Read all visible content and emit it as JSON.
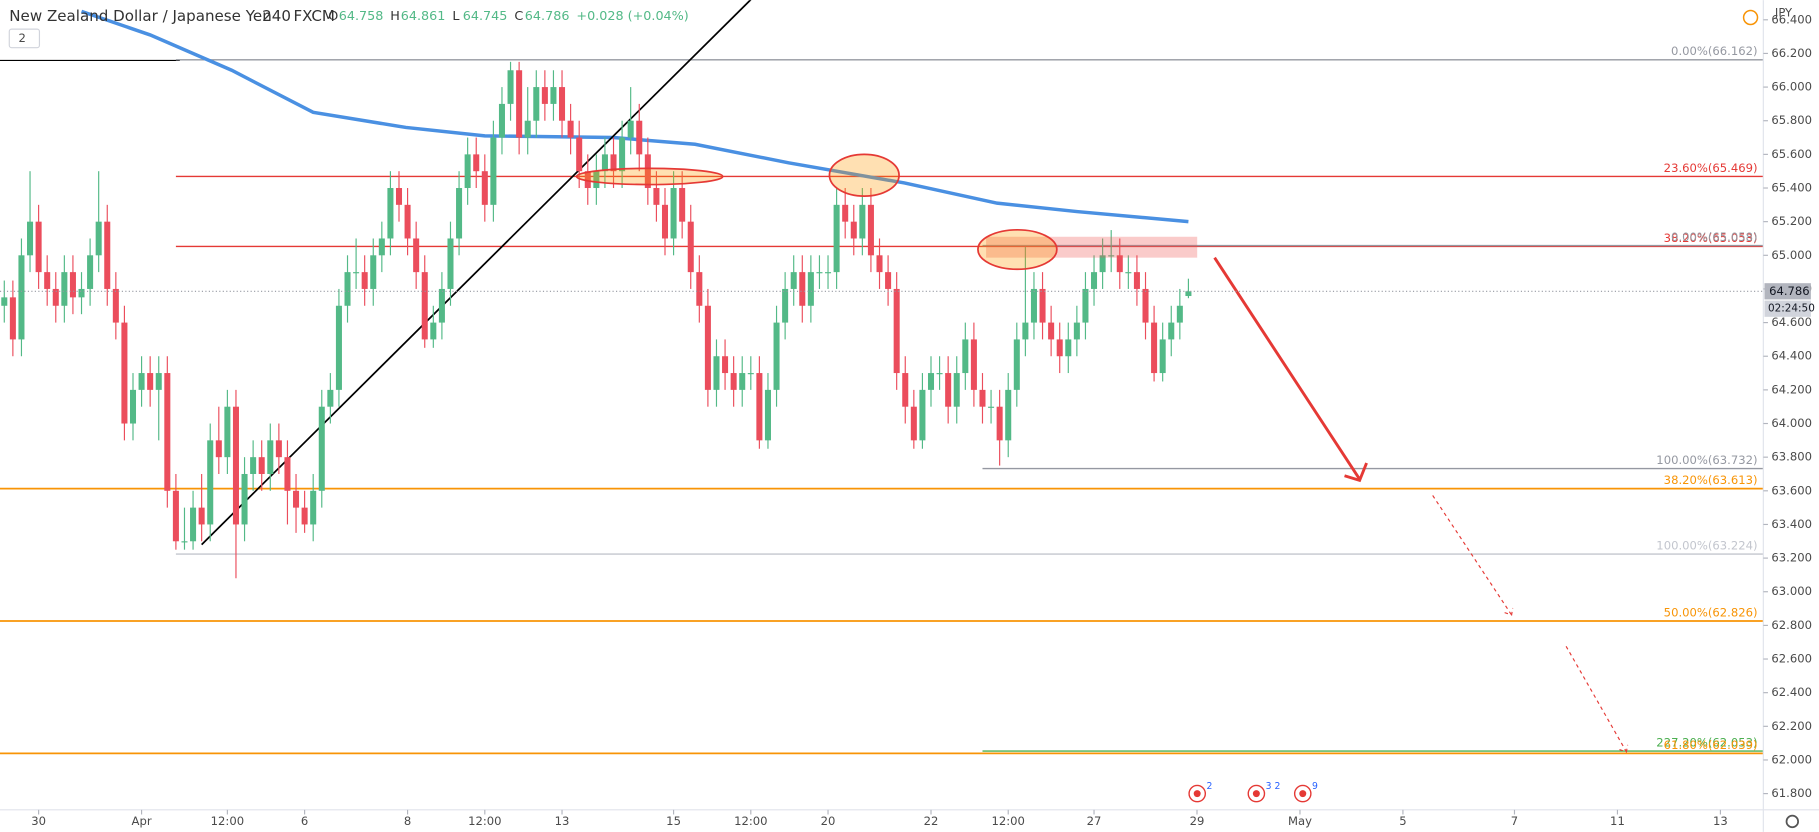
{
  "chart_data": {
    "type": "candlestick",
    "symbol": "New Zealand Dollar / Japanese Yen",
    "interval": "240",
    "source": "FXCM",
    "ohlc_labels": [
      "O",
      "H",
      "L",
      "C"
    ],
    "change": "+0.028 (+0.04%)",
    "indicator_count": "2",
    "currency": "JPY",
    "countdown": "02:24:50",
    "event_badges": [
      "2",
      "3 2",
      "9"
    ],
    "up_color": "#53b987",
    "down_color": "#eb4d5c",
    "xlim": [
      -0.5,
      205
    ],
    "ylim": [
      61.7,
      66.517
    ],
    "xticks": [
      {
        "value": 4,
        "label": "30"
      },
      {
        "value": 16,
        "label": "Apr"
      },
      {
        "value": 26,
        "label": "12:00"
      },
      {
        "value": 35,
        "label": "6"
      },
      {
        "value": 47,
        "label": "8"
      },
      {
        "value": 56,
        "label": "12:00"
      },
      {
        "value": 65,
        "label": "13"
      },
      {
        "value": 78,
        "label": "15"
      },
      {
        "value": 87,
        "label": "12:00"
      },
      {
        "value": 96,
        "label": "20"
      },
      {
        "value": 108,
        "label": "22"
      },
      {
        "value": 117,
        "label": "12:00"
      },
      {
        "value": 127,
        "label": "27"
      },
      {
        "value": 139,
        "label": "29"
      },
      {
        "value": 151,
        "label": "May"
      },
      {
        "value": 163,
        "label": "5"
      },
      {
        "value": 176,
        "label": "7"
      },
      {
        "value": 188,
        "label": "11"
      },
      {
        "value": 200,
        "label": "13"
      }
    ],
    "yticks": [
      {
        "value": 61.8,
        "label": "61.800"
      },
      {
        "value": 62.0,
        "label": "62.000"
      },
      {
        "value": 62.2,
        "label": "62.200"
      },
      {
        "value": 62.4,
        "label": "62.400"
      },
      {
        "value": 62.6,
        "label": "62.600"
      },
      {
        "value": 62.8,
        "label": "62.800"
      },
      {
        "value": 63.0,
        "label": "63.000"
      },
      {
        "value": 63.2,
        "label": "63.200"
      },
      {
        "value": 63.4,
        "label": "63.400"
      },
      {
        "value": 63.6,
        "label": "63.600"
      },
      {
        "value": 63.8,
        "label": "63.800"
      },
      {
        "value": 64.0,
        "label": "64.000"
      },
      {
        "value": 64.2,
        "label": "64.200"
      },
      {
        "value": 64.4,
        "label": "64.400"
      },
      {
        "value": 64.6,
        "label": "64.600"
      },
      {
        "value": 64.8,
        "label": "64.800"
      },
      {
        "value": 65.0,
        "label": "65.000"
      },
      {
        "value": 65.2,
        "label": "65.200"
      },
      {
        "value": 65.4,
        "label": "65.400"
      },
      {
        "value": 65.6,
        "label": "65.600"
      },
      {
        "value": 65.8,
        "label": "65.800"
      },
      {
        "value": 66.0,
        "label": "66.000"
      },
      {
        "value": 66.2,
        "label": "66.200"
      },
      {
        "value": 66.4,
        "label": "66.400"
      }
    ],
    "moving_average": {
      "color": "#4a90e2",
      "x": [
        9,
        17,
        26.5,
        36,
        46.8,
        56,
        71,
        80.5,
        91.4,
        104.9,
        115.7,
        125,
        138
      ],
      "values": [
        66.45,
        66.31,
        66.1,
        65.85,
        65.76,
        65.71,
        65.7,
        65.66,
        65.55,
        65.43,
        65.31,
        65.26,
        65.2
      ]
    },
    "trendline": {
      "color": "#000000",
      "x": [
        23,
        87
      ],
      "values": [
        63.28,
        66.52
      ]
    },
    "levels": [
      {
        "label": "0.00%(66.162)",
        "value": 66.162,
        "color": "#9598a1",
        "from": 20
      },
      {
        "label": "23.60%(65.469)",
        "value": 65.469,
        "color": "#e53935",
        "from": 20
      },
      {
        "label": "38.20%(65.053)",
        "value": 65.053,
        "color": "#e53935",
        "from": 20
      },
      {
        "label": "0.00%(65.058)",
        "value": 65.058,
        "color": "#9598a1",
        "from": 114
      },
      {
        "label": "100.00%(63.732)",
        "value": 63.732,
        "color": "#9598a1",
        "from": 114
      },
      {
        "label": "38.20%(63.613)",
        "value": 63.613,
        "color": "#f89406",
        "from": -0.5
      },
      {
        "label": "100.00%(63.224)",
        "value": 63.224,
        "color": "#c3c6ce",
        "from": 20
      },
      {
        "label": "50.00%(62.826)",
        "value": 62.826,
        "color": "#f89406",
        "from": -0.5
      },
      {
        "label": "227.20%(62.053)",
        "value": 62.053,
        "color": "#4caf50",
        "from": 114
      },
      {
        "label": "61.80%(62.039)",
        "value": 62.039,
        "color": "#f89406",
        "from": -0.5
      }
    ],
    "candles": [
      [
        64.7,
        64.85,
        64.6,
        64.75
      ],
      [
        64.75,
        64.85,
        64.4,
        64.5
      ],
      [
        64.5,
        65.1,
        64.4,
        65.0
      ],
      [
        65.0,
        65.5,
        64.9,
        65.2
      ],
      [
        65.2,
        65.3,
        64.8,
        64.9
      ],
      [
        64.9,
        65.0,
        64.7,
        64.8
      ],
      [
        64.8,
        64.9,
        64.6,
        64.7
      ],
      [
        64.7,
        65.0,
        64.6,
        64.9
      ],
      [
        64.9,
        65.0,
        64.65,
        64.75
      ],
      [
        64.75,
        64.9,
        64.65,
        64.8
      ],
      [
        64.8,
        65.1,
        64.7,
        65.0
      ],
      [
        65.0,
        65.5,
        64.9,
        65.2
      ],
      [
        65.2,
        65.3,
        64.7,
        64.8
      ],
      [
        64.8,
        64.9,
        64.5,
        64.6
      ],
      [
        64.6,
        64.7,
        63.9,
        64.0
      ],
      [
        64.0,
        64.3,
        63.9,
        64.2
      ],
      [
        64.2,
        64.4,
        64.1,
        64.3
      ],
      [
        64.3,
        64.4,
        64.1,
        64.2
      ],
      [
        64.2,
        64.4,
        63.9,
        64.3
      ],
      [
        64.3,
        64.4,
        63.5,
        63.6
      ],
      [
        63.6,
        63.7,
        63.25,
        63.3
      ],
      [
        63.3,
        63.5,
        63.25,
        63.3
      ],
      [
        63.3,
        63.6,
        63.25,
        63.5
      ],
      [
        63.5,
        63.7,
        63.3,
        63.4
      ],
      [
        63.4,
        64.0,
        63.3,
        63.9
      ],
      [
        63.9,
        64.1,
        63.7,
        63.8
      ],
      [
        63.8,
        64.2,
        63.7,
        64.1
      ],
      [
        64.1,
        64.2,
        63.08,
        63.4
      ],
      [
        63.4,
        63.8,
        63.3,
        63.7
      ],
      [
        63.7,
        63.9,
        63.6,
        63.8
      ],
      [
        63.8,
        63.9,
        63.6,
        63.7
      ],
      [
        63.7,
        64.0,
        63.6,
        63.9
      ],
      [
        63.9,
        64.0,
        63.7,
        63.8
      ],
      [
        63.8,
        63.9,
        63.4,
        63.6
      ],
      [
        63.6,
        63.7,
        63.35,
        63.5
      ],
      [
        63.5,
        63.6,
        63.35,
        63.4
      ],
      [
        63.4,
        63.7,
        63.3,
        63.6
      ],
      [
        63.6,
        64.2,
        63.5,
        64.1
      ],
      [
        64.1,
        64.3,
        64.0,
        64.2
      ],
      [
        64.2,
        64.8,
        64.1,
        64.7
      ],
      [
        64.7,
        65.0,
        64.6,
        64.9
      ],
      [
        64.9,
        65.1,
        64.8,
        64.9
      ],
      [
        64.9,
        65.0,
        64.7,
        64.8
      ],
      [
        64.8,
        65.1,
        64.7,
        65.0
      ],
      [
        65.0,
        65.2,
        64.9,
        65.1
      ],
      [
        65.1,
        65.5,
        65.0,
        65.4
      ],
      [
        65.4,
        65.5,
        65.2,
        65.3
      ],
      [
        65.3,
        65.4,
        65.0,
        65.1
      ],
      [
        65.1,
        65.2,
        64.8,
        64.9
      ],
      [
        64.9,
        65.0,
        64.45,
        64.5
      ],
      [
        64.5,
        64.7,
        64.45,
        64.6
      ],
      [
        64.6,
        64.9,
        64.5,
        64.8
      ],
      [
        64.8,
        65.2,
        64.7,
        65.1
      ],
      [
        65.1,
        65.5,
        65.0,
        65.4
      ],
      [
        65.4,
        65.7,
        65.3,
        65.6
      ],
      [
        65.6,
        65.7,
        65.4,
        65.5
      ],
      [
        65.5,
        65.6,
        65.2,
        65.3
      ],
      [
        65.3,
        65.8,
        65.2,
        65.7
      ],
      [
        65.7,
        66.0,
        65.6,
        65.9
      ],
      [
        65.9,
        66.15,
        65.8,
        66.1
      ],
      [
        66.1,
        66.15,
        65.6,
        65.7
      ],
      [
        65.7,
        66.0,
        65.6,
        65.8
      ],
      [
        65.8,
        66.1,
        65.7,
        66.0
      ],
      [
        66.0,
        66.1,
        65.8,
        65.9
      ],
      [
        65.9,
        66.1,
        65.8,
        66.0
      ],
      [
        66.0,
        66.1,
        65.7,
        65.8
      ],
      [
        65.8,
        65.9,
        65.6,
        65.7
      ],
      [
        65.7,
        65.8,
        65.4,
        65.5
      ],
      [
        65.5,
        65.6,
        65.3,
        65.4
      ],
      [
        65.4,
        65.6,
        65.3,
        65.5
      ],
      [
        65.5,
        65.7,
        65.4,
        65.6
      ],
      [
        65.6,
        65.7,
        65.4,
        65.5
      ],
      [
        65.5,
        65.8,
        65.4,
        65.7
      ],
      [
        65.7,
        66.0,
        65.6,
        65.8
      ],
      [
        65.8,
        65.9,
        65.5,
        65.6
      ],
      [
        65.6,
        65.7,
        65.3,
        65.4
      ],
      [
        65.4,
        65.5,
        65.2,
        65.3
      ],
      [
        65.3,
        65.4,
        65.0,
        65.1
      ],
      [
        65.1,
        65.5,
        65.0,
        65.4
      ],
      [
        65.4,
        65.5,
        65.1,
        65.2
      ],
      [
        65.2,
        65.3,
        64.8,
        64.9
      ],
      [
        64.9,
        65.0,
        64.6,
        64.7
      ],
      [
        64.7,
        64.8,
        64.1,
        64.2
      ],
      [
        64.2,
        64.5,
        64.1,
        64.4
      ],
      [
        64.4,
        64.5,
        64.2,
        64.3
      ],
      [
        64.3,
        64.4,
        64.1,
        64.2
      ],
      [
        64.2,
        64.4,
        64.1,
        64.3
      ],
      [
        64.3,
        64.4,
        64.2,
        64.3
      ],
      [
        64.3,
        64.4,
        63.85,
        63.9
      ],
      [
        63.9,
        64.3,
        63.85,
        64.2
      ],
      [
        64.2,
        64.7,
        64.1,
        64.6
      ],
      [
        64.6,
        64.9,
        64.5,
        64.8
      ],
      [
        64.8,
        65.0,
        64.7,
        64.9
      ],
      [
        64.9,
        65.0,
        64.6,
        64.7
      ],
      [
        64.7,
        65.0,
        64.6,
        64.9
      ],
      [
        64.9,
        65.0,
        64.8,
        64.9
      ],
      [
        64.9,
        65.0,
        64.8,
        64.9
      ],
      [
        64.9,
        65.4,
        64.8,
        65.3
      ],
      [
        65.3,
        65.4,
        65.1,
        65.2
      ],
      [
        65.2,
        65.3,
        65.0,
        65.1
      ],
      [
        65.1,
        65.4,
        65.0,
        65.3
      ],
      [
        65.3,
        65.4,
        64.9,
        65.0
      ],
      [
        65.0,
        65.1,
        64.8,
        64.9
      ],
      [
        64.9,
        65.0,
        64.7,
        64.8
      ],
      [
        64.8,
        64.9,
        64.2,
        64.3
      ],
      [
        64.3,
        64.4,
        64.0,
        64.1
      ],
      [
        64.1,
        64.2,
        63.85,
        63.9
      ],
      [
        63.9,
        64.3,
        63.85,
        64.2
      ],
      [
        64.2,
        64.4,
        64.1,
        64.3
      ],
      [
        64.3,
        64.4,
        64.2,
        64.3
      ],
      [
        64.3,
        64.4,
        64.0,
        64.1
      ],
      [
        64.1,
        64.4,
        64.0,
        64.3
      ],
      [
        64.3,
        64.6,
        64.2,
        64.5
      ],
      [
        64.5,
        64.6,
        64.1,
        64.2
      ],
      [
        64.2,
        64.3,
        64.0,
        64.1
      ],
      [
        64.1,
        64.2,
        64.0,
        64.1
      ],
      [
        64.1,
        64.2,
        63.75,
        63.9
      ],
      [
        63.9,
        64.3,
        63.8,
        64.2
      ],
      [
        64.2,
        64.6,
        64.1,
        64.5
      ],
      [
        64.5,
        65.05,
        64.4,
        64.6
      ],
      [
        64.6,
        64.9,
        64.5,
        64.8
      ],
      [
        64.8,
        64.9,
        64.5,
        64.6
      ],
      [
        64.6,
        64.7,
        64.4,
        64.5
      ],
      [
        64.5,
        64.6,
        64.3,
        64.4
      ],
      [
        64.4,
        64.6,
        64.3,
        64.5
      ],
      [
        64.5,
        64.7,
        64.4,
        64.6
      ],
      [
        64.6,
        64.9,
        64.5,
        64.8
      ],
      [
        64.8,
        65.0,
        64.7,
        64.9
      ],
      [
        64.9,
        65.1,
        64.8,
        65.0
      ],
      [
        65.0,
        65.15,
        64.9,
        65.0
      ],
      [
        65.0,
        65.1,
        64.8,
        64.9
      ],
      [
        64.9,
        65.0,
        64.8,
        64.9
      ],
      [
        64.9,
        65.0,
        64.7,
        64.8
      ],
      [
        64.8,
        64.9,
        64.5,
        64.6
      ],
      [
        64.6,
        64.7,
        64.25,
        64.3
      ],
      [
        64.3,
        64.6,
        64.25,
        64.5
      ],
      [
        64.5,
        64.7,
        64.4,
        64.6
      ],
      [
        64.6,
        64.8,
        64.5,
        64.7
      ],
      [
        64.758,
        64.861,
        64.745,
        64.786
      ]
    ]
  }
}
